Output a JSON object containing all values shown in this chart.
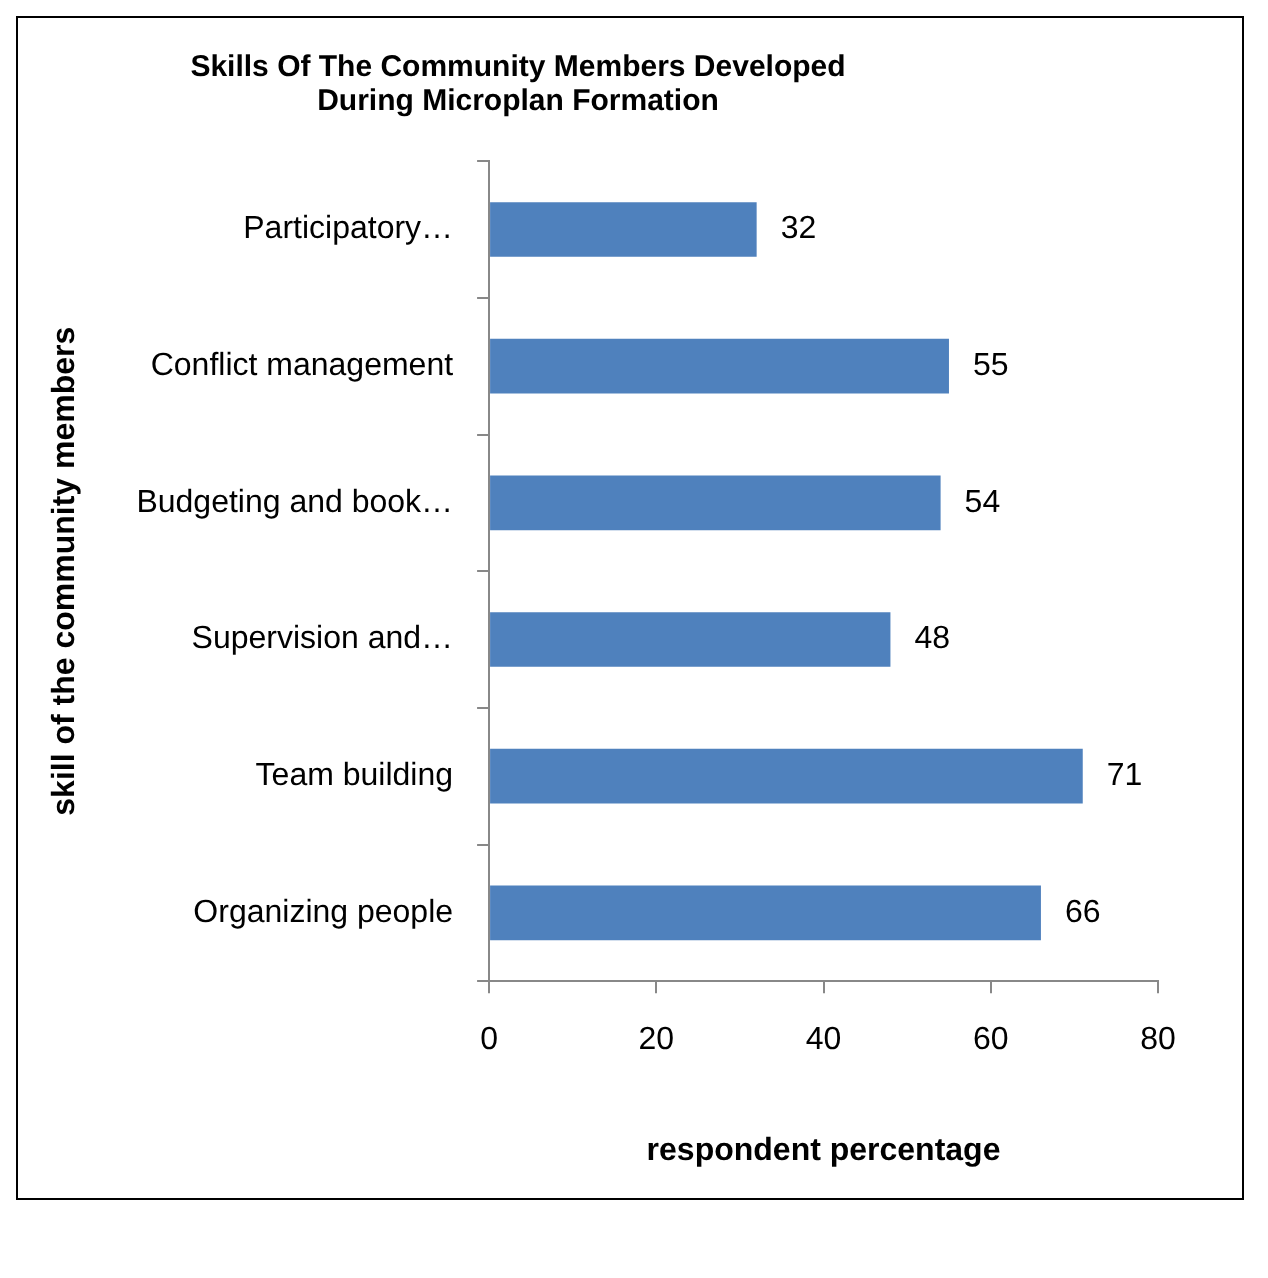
{
  "chart_data": {
    "type": "bar",
    "orientation": "horizontal",
    "title": "Skills Of The Community Members Developed During Microplan Formation",
    "xlabel": "respondent percentage",
    "ylabel": "skill of the community members",
    "categories": [
      "Participatory…",
      "Conflict management",
      "Budgeting and book…",
      "Supervision and…",
      "Team building",
      "Organizing people"
    ],
    "values": [
      32,
      55,
      54,
      48,
      71,
      66
    ],
    "color": "#4f81bd",
    "xlim": [
      0,
      80
    ],
    "xticks": [
      0,
      20,
      40,
      60,
      80
    ],
    "grid": false,
    "legend": false,
    "data_labels": true
  }
}
